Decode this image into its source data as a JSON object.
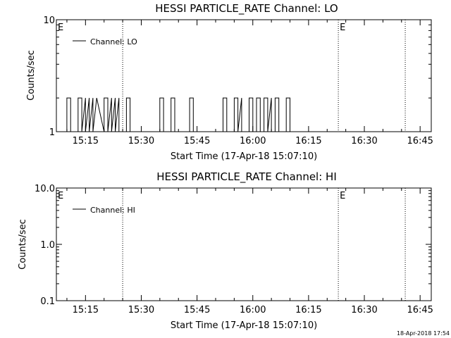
{
  "stamp": "18-Apr-2018 17:54",
  "colors": {
    "background": "#ffffff",
    "foreground": "#000000"
  },
  "chart_data": [
    {
      "type": "line",
      "title": "HESSI PARTICLE_RATE Channel: LO",
      "xlabel": "Start Time (17-Apr-18 15:07:10)",
      "ylabel": "Counts/sec",
      "yscale": "log",
      "xlim": [
        "15:07:10",
        "16:48"
      ],
      "ylim": [
        1,
        10
      ],
      "xticks": [
        "15:15",
        "15:30",
        "15:45",
        "16:00",
        "16:15",
        "16:30",
        "16:45"
      ],
      "xtick_minutes": [
        15,
        30,
        45,
        60,
        75,
        90,
        105
      ],
      "yticks": [
        {
          "value": 1,
          "label": "1"
        },
        {
          "value": 10,
          "label": "10"
        }
      ],
      "legend": {
        "label": "Channel: LO",
        "position": "top-left"
      },
      "markers": [
        {
          "time": "15:07:10",
          "style": "none",
          "label": "E"
        },
        {
          "time": "15:25",
          "style": "dotted",
          "label": ""
        },
        {
          "time": "16:23",
          "style": "dotted",
          "label": "E"
        },
        {
          "time": "16:41",
          "style": "dotted",
          "label": ""
        }
      ],
      "series": [
        {
          "name": "Channel: LO",
          "time": [
            "15:10",
            "15:10",
            "15:11",
            "15:11",
            "15:13",
            "15:13",
            "15:14",
            "15:14",
            "15:15",
            "15:15",
            "15:16",
            "15:16",
            "15:17",
            "15:17",
            "15:18",
            "15:18",
            "15:20",
            "15:20",
            "15:21",
            "15:21",
            "15:22",
            "15:22",
            "15:23",
            "15:23",
            "15:24",
            "15:24",
            "15:26",
            "15:26",
            "15:27",
            "15:27",
            "15:35",
            "15:35",
            "15:36",
            "15:36",
            "15:38",
            "15:38",
            "15:39",
            "15:39",
            "15:43",
            "15:43",
            "15:44",
            "15:44",
            "15:52",
            "15:52",
            "15:53",
            "15:53",
            "15:55",
            "15:55",
            "15:56",
            "15:56",
            "15:57",
            "15:57",
            "15:59",
            "15:59",
            "16:00",
            "16:00",
            "16:01",
            "16:01",
            "16:02",
            "16:02",
            "16:03",
            "16:03",
            "16:04",
            "16:04",
            "16:05",
            "16:05",
            "16:06",
            "16:06",
            "16:07",
            "16:07",
            "16:09",
            "16:09",
            "16:10",
            "16:10"
          ],
          "values": [
            1,
            2,
            2,
            1,
            1,
            2,
            2,
            1,
            2,
            1,
            2,
            1,
            2,
            1,
            2,
            2,
            1,
            2,
            2,
            1,
            2,
            1,
            2,
            1,
            2,
            1,
            1,
            2,
            2,
            1,
            1,
            2,
            2,
            1,
            1,
            2,
            2,
            1,
            1,
            2,
            2,
            1,
            1,
            2,
            2,
            1,
            1,
            2,
            2,
            1,
            2,
            1,
            1,
            2,
            2,
            1,
            1,
            2,
            2,
            1,
            1,
            2,
            2,
            1,
            2,
            1,
            1,
            2,
            2,
            1,
            1,
            2,
            2,
            1
          ]
        }
      ]
    },
    {
      "type": "line",
      "title": "HESSI PARTICLE_RATE Channel: HI",
      "xlabel": "Start Time (17-Apr-18 15:07:10)",
      "ylabel": "Counts/sec",
      "yscale": "log",
      "xlim": [
        "15:07:10",
        "16:48"
      ],
      "ylim": [
        0.1,
        10
      ],
      "xticks": [
        "15:15",
        "15:30",
        "15:45",
        "16:00",
        "16:15",
        "16:30",
        "16:45"
      ],
      "xtick_minutes": [
        15,
        30,
        45,
        60,
        75,
        90,
        105
      ],
      "yticks": [
        {
          "value": 0.1,
          "label": "0.1"
        },
        {
          "value": 1,
          "label": "1.0"
        },
        {
          "value": 10,
          "label": "10.0"
        }
      ],
      "legend": {
        "label": "Channel: HI",
        "position": "top-left"
      },
      "markers": [
        {
          "time": "15:07:10",
          "style": "none",
          "label": "E"
        },
        {
          "time": "15:25",
          "style": "dotted",
          "label": ""
        },
        {
          "time": "16:23",
          "style": "dotted",
          "label": "E"
        },
        {
          "time": "16:41",
          "style": "dotted",
          "label": ""
        }
      ],
      "series": [
        {
          "name": "Channel: HI",
          "time": [],
          "values": []
        }
      ]
    }
  ]
}
